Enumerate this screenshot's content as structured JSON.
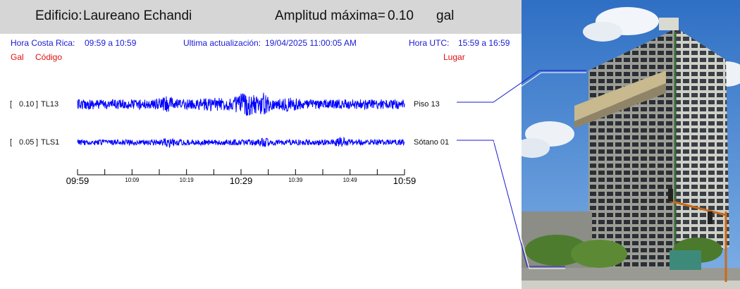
{
  "header": {
    "building_label": "Edificio:",
    "building_name": "Laureano Echandi",
    "amplitude_label": "Amplitud máxima=",
    "amplitude_value": "0.10",
    "amplitude_unit": "gal"
  },
  "info": {
    "local_label": "Hora Costa Rica:",
    "local_range": "09:59 a 10:59",
    "update_label": "Ultima actualización:",
    "update_value": "19/04/2025 11:00:05 AM",
    "utc_label": "Hora UTC:",
    "utc_range": "15:59 a 16:59"
  },
  "columns": {
    "gal": "Gal",
    "code": "Código",
    "place": "Lugar"
  },
  "colors": {
    "trace": "#0000ff",
    "header_bg": "#d6d6d6",
    "info_text": "#1a1ad6",
    "column_text": "#e01010"
  },
  "chart_data": {
    "type": "line",
    "xlabel": "",
    "ylabel": "",
    "x_ticks": [
      "09:59",
      "10:09",
      "10:19",
      "10:29",
      "10:39",
      "10:49",
      "10:59"
    ],
    "traces": [
      {
        "amplitude": "0.10",
        "code": "TL13",
        "place": "Piso 13",
        "max_gal": 0.1
      },
      {
        "amplitude": "0.05",
        "code": "TLS1",
        "place": "Sótano 01",
        "max_gal": 0.05
      }
    ]
  },
  "photo": {
    "icon": "building-photo"
  }
}
